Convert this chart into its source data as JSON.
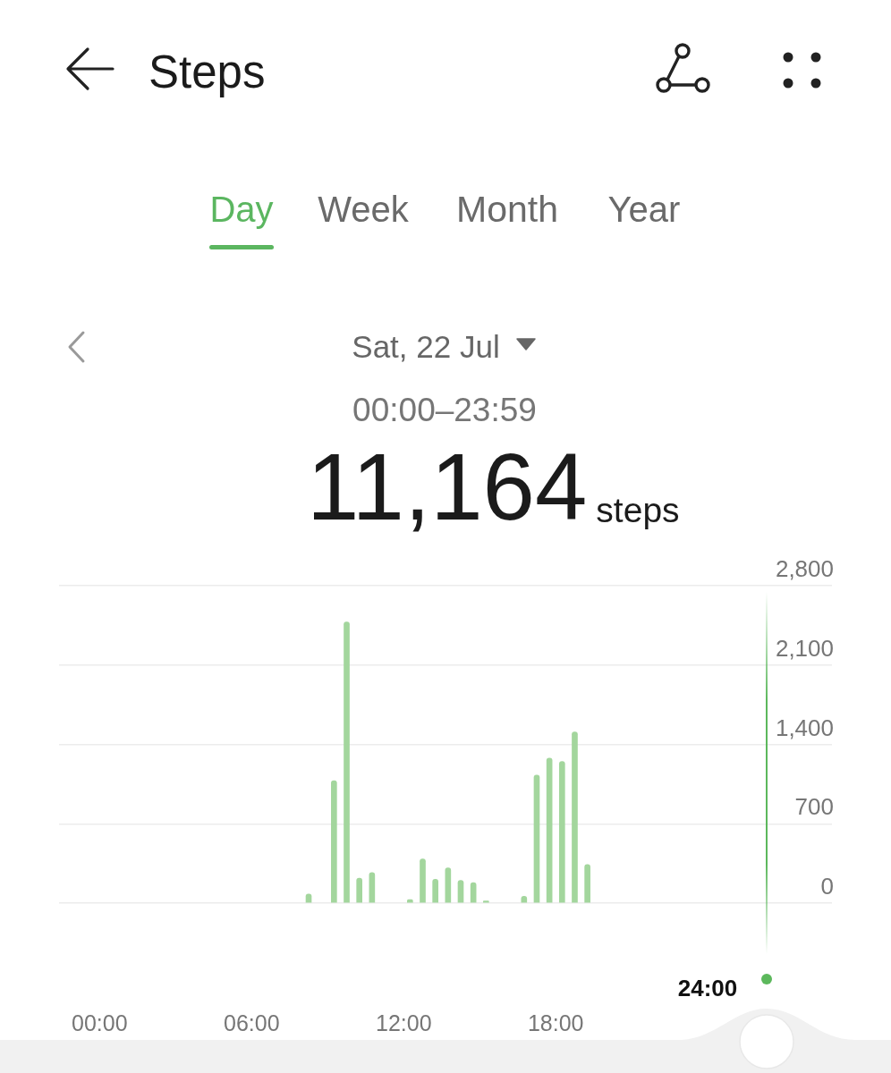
{
  "chart_data": {
    "type": "bar",
    "title": "Steps",
    "subtitle": "Sat, 22 Jul",
    "annotations": [
      "Day",
      "Week",
      "Month",
      "Year",
      "00:00–23:59",
      "11,164",
      "steps",
      "24:00"
    ],
    "x": [
      8.25,
      9.25,
      9.75,
      10.25,
      10.75,
      12.25,
      12.75,
      13.25,
      13.75,
      14.25,
      14.75,
      15.25,
      16.75,
      17.25,
      17.75,
      18.25,
      18.75,
      19.25
    ],
    "values": [
      80,
      1080,
      2480,
      220,
      270,
      30,
      390,
      210,
      310,
      200,
      180,
      20,
      60,
      1130,
      1280,
      1250,
      1510,
      340
    ],
    "color": "#a3d69d",
    "xlim": [
      -1.6,
      28.9
    ],
    "xticks": [
      {
        "value": 0,
        "label": "00:00"
      },
      {
        "value": 6,
        "label": "06:00"
      },
      {
        "value": 12,
        "label": "12:00"
      },
      {
        "value": 18,
        "label": "18:00"
      }
    ],
    "ylim": [
      0,
      2800
    ],
    "yticks": [
      0,
      700,
      {
        "value": 1400,
        "label": "1,400"
      },
      {
        "value": 2100,
        "label": "2,100"
      },
      {
        "value": 2800,
        "label": "2,800"
      }
    ],
    "grid": "y"
  }
}
